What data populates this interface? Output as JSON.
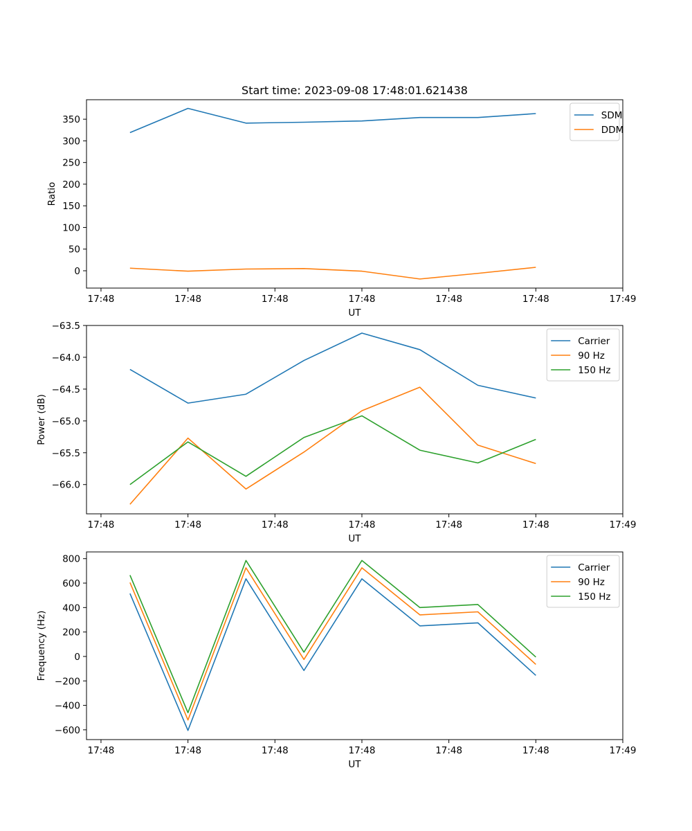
{
  "figure_title": "Start time: 2023-09-08 17:48:01.621438",
  "colors": {
    "blue": "#1f77b4",
    "orange": "#ff7f0e",
    "green": "#2ca02c"
  },
  "chart_data": [
    {
      "id": "ratio",
      "type": "line",
      "title": "Start time: 2023-09-08 17:48:01.621438",
      "xlabel": "UT",
      "ylabel": "Ratio",
      "xlim": [
        -0.75,
        8.5
      ],
      "ylim": [
        -40,
        395
      ],
      "x_ticks": [
        -0.5,
        1,
        2.5,
        4,
        5.5,
        7,
        8.5
      ],
      "x_tick_labels": [
        "17:48",
        "17:48",
        "17:48",
        "17:48",
        "17:48",
        "17:48",
        "17:49"
      ],
      "y_ticks": [
        0,
        50,
        100,
        150,
        200,
        250,
        300,
        350
      ],
      "y_tick_labels": [
        "0",
        "50",
        "100",
        "150",
        "200",
        "250",
        "300",
        "350"
      ],
      "legend_position": "top-right",
      "x": [
        0,
        1,
        2,
        3,
        4,
        5,
        6,
        7
      ],
      "series": [
        {
          "name": "SDM",
          "color": "#1f77b4",
          "values": [
            319,
            375,
            341,
            343,
            346,
            354,
            354,
            363
          ]
        },
        {
          "name": "DDM",
          "color": "#ff7f0e",
          "values": [
            6,
            -1,
            4,
            5,
            -1,
            -19,
            -6,
            8
          ]
        }
      ]
    },
    {
      "id": "power",
      "type": "line",
      "title": "",
      "xlabel": "UT",
      "ylabel": "Power (dB)",
      "xlim": [
        -0.75,
        8.5
      ],
      "ylim": [
        -66.46,
        -63.5
      ],
      "x_ticks": [
        -0.5,
        1,
        2.5,
        4,
        5.5,
        7,
        8.5
      ],
      "x_tick_labels": [
        "17:48",
        "17:48",
        "17:48",
        "17:48",
        "17:48",
        "17:48",
        "17:49"
      ],
      "y_ticks": [
        -66.0,
        -65.5,
        -65.0,
        -64.5,
        -64.0,
        -63.5
      ],
      "y_tick_labels": [
        "−66.0",
        "−65.5",
        "−65.0",
        "−64.5",
        "−64.0",
        "−63.5"
      ],
      "legend_position": "top-right",
      "x": [
        0,
        1,
        2,
        3,
        4,
        5,
        6,
        7
      ],
      "series": [
        {
          "name": "Carrier",
          "color": "#1f77b4",
          "values": [
            -64.19,
            -64.72,
            -64.58,
            -64.05,
            -63.62,
            -63.88,
            -64.44,
            -64.64
          ]
        },
        {
          "name": "90 Hz",
          "color": "#ff7f0e",
          "values": [
            -66.31,
            -65.27,
            -66.07,
            -65.49,
            -64.84,
            -64.47,
            -65.38,
            -65.67
          ]
        },
        {
          "name": "150 Hz",
          "color": "#2ca02c",
          "values": [
            -66.0,
            -65.33,
            -65.87,
            -65.26,
            -64.92,
            -65.46,
            -65.66,
            -65.29
          ]
        }
      ]
    },
    {
      "id": "frequency",
      "type": "line",
      "title": "",
      "xlabel": "UT",
      "ylabel": "Frequency (Hz)",
      "xlim": [
        -0.75,
        8.5
      ],
      "ylim": [
        -680,
        855
      ],
      "x_ticks": [
        -0.5,
        1,
        2.5,
        4,
        5.5,
        7,
        8.5
      ],
      "x_tick_labels": [
        "17:48",
        "17:48",
        "17:48",
        "17:48",
        "17:48",
        "17:48",
        "17:49"
      ],
      "y_ticks": [
        -600,
        -400,
        -200,
        0,
        200,
        400,
        600,
        800
      ],
      "y_tick_labels": [
        "−600",
        "−400",
        "−200",
        "0",
        "200",
        "400",
        "600",
        "800"
      ],
      "legend_position": "top-right",
      "x": [
        0,
        1,
        2,
        3,
        4,
        5,
        6,
        7
      ],
      "series": [
        {
          "name": "Carrier",
          "color": "#1f77b4",
          "values": [
            515,
            -605,
            635,
            -115,
            635,
            250,
            275,
            -155
          ]
        },
        {
          "name": "90 Hz",
          "color": "#ff7f0e",
          "values": [
            605,
            -520,
            725,
            -25,
            725,
            340,
            365,
            -65
          ]
        },
        {
          "name": "150 Hz",
          "color": "#2ca02c",
          "values": [
            665,
            -460,
            785,
            35,
            785,
            400,
            425,
            -5
          ]
        }
      ]
    }
  ]
}
